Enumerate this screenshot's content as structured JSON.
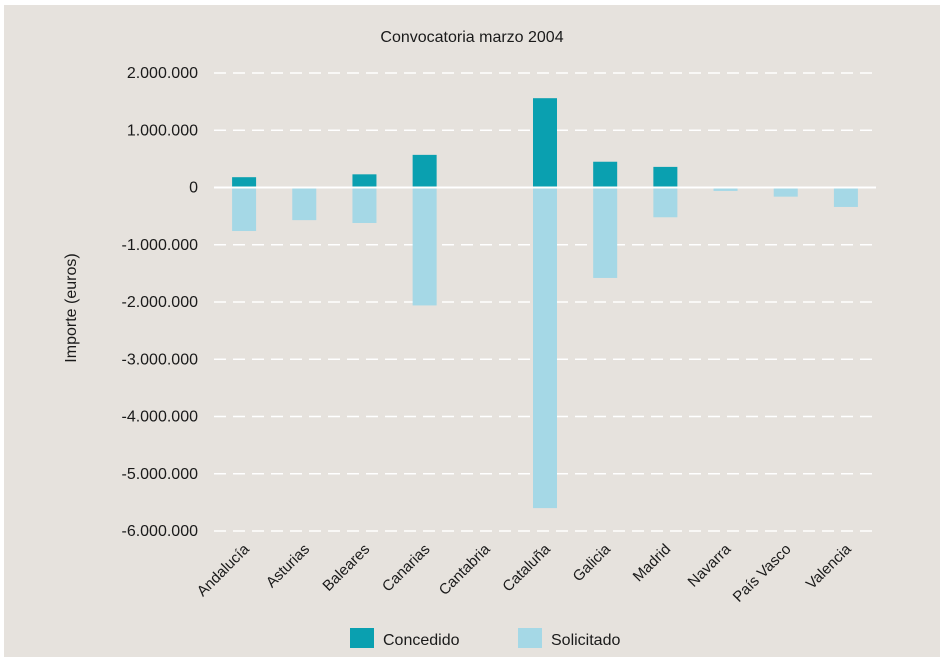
{
  "chart_data": {
    "type": "bar",
    "title": "Convocatoria marzo 2004",
    "xlabel": "",
    "ylabel": "Importe (euros)",
    "ylim": [
      -6000000,
      2000000
    ],
    "yticks": [
      2000000,
      1000000,
      0,
      -1000000,
      -2000000,
      -3000000,
      -4000000,
      -5000000,
      -6000000
    ],
    "ytick_labels": [
      "2.000.000",
      "1.000.000",
      "0",
      "-1.000.000",
      "-2.000.000",
      "-3.000.000",
      "-4.000.000",
      "-5.000.000",
      "-6.000.000"
    ],
    "grid": true,
    "legend_position": "bottom",
    "categories": [
      "Andalucía",
      "Asturias",
      "Baleares",
      "Canarias",
      "Cantabria",
      "Cataluña",
      "Galicia",
      "Madrid",
      "Navarra",
      "País Vasco",
      "Valencia"
    ],
    "series": [
      {
        "name": "Concedido",
        "color": "#0aa0b0",
        "values": [
          180000,
          0,
          230000,
          570000,
          0,
          1560000,
          450000,
          360000,
          0,
          0,
          0
        ]
      },
      {
        "name": "Solicitado",
        "color": "#a5d8e6",
        "values": [
          -760000,
          -570000,
          -620000,
          -2060000,
          0,
          -5600000,
          -1580000,
          -520000,
          -60000,
          -160000,
          -340000
        ]
      }
    ]
  }
}
